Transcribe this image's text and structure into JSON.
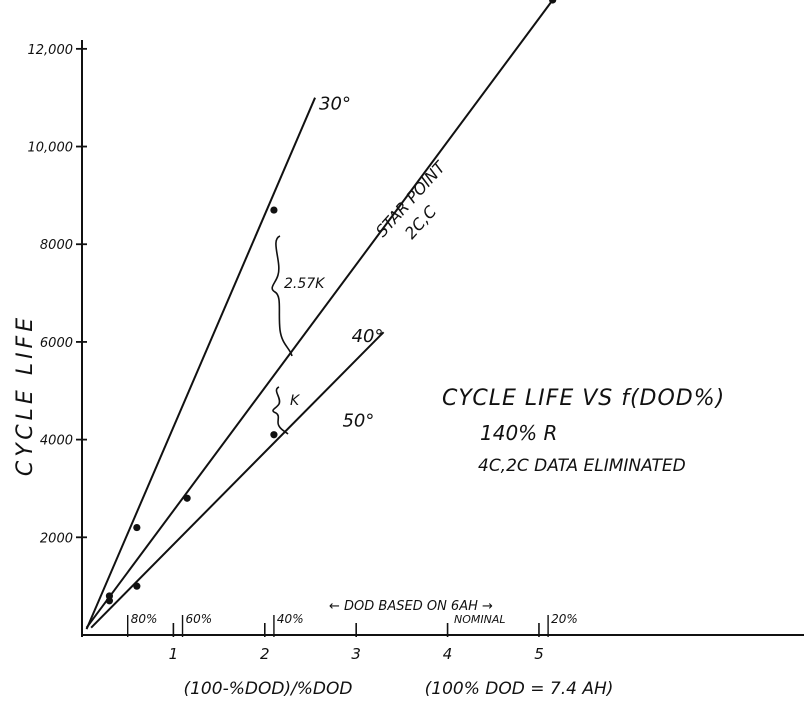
{
  "chart_data": {
    "type": "line",
    "title": "CYCLE LIFE VS f(DOD%)",
    "subtitle_lines": [
      "140% R",
      "4C,2C DATA ELIMINATED"
    ],
    "xlabel": "(100-%DOD)/%DOD",
    "xlabel_note": "(100% DOD = 7.4 AH)",
    "ylabel": "CYCLE LIFE",
    "xlim": [
      0,
      7.9
    ],
    "ylim": [
      0,
      13000
    ],
    "x_ticks": [
      {
        "value": 1,
        "label": "1"
      },
      {
        "value": 2,
        "label": "2"
      },
      {
        "value": 3,
        "label": "3"
      },
      {
        "value": 4,
        "label": "4"
      },
      {
        "value": 5,
        "label": "5"
      }
    ],
    "y_ticks": [
      {
        "value": 2000,
        "label": "2000"
      },
      {
        "value": 4000,
        "label": "4000"
      },
      {
        "value": 6000,
        "label": "6000"
      },
      {
        "value": 8000,
        "label": "8000"
      },
      {
        "value": 10000,
        "label": "10,000"
      },
      {
        "value": 12000,
        "label": "12,000"
      }
    ],
    "dod_markers": [
      {
        "value": 0.5,
        "label": "80%"
      },
      {
        "value": 1.1,
        "label": "60%"
      },
      {
        "value": 2.1,
        "label": "40%"
      },
      {
        "value": 5.1,
        "label": "20%"
      }
    ],
    "dod_note_top": "← DOD BASED ON 6AH →",
    "dod_note_bottom": "NOMINAL",
    "series": [
      {
        "name": "30°",
        "line": [
          [
            0.05,
            120
          ],
          [
            2.55,
            11000
          ]
        ],
        "points": [
          [
            0.6,
            2200
          ],
          [
            2.1,
            8700
          ]
        ]
      },
      {
        "name": "40°",
        "line": [
          [
            0.05,
            150
          ],
          [
            5.15,
            13000
          ]
        ],
        "points": [
          [
            0.3,
            800
          ],
          [
            1.15,
            2800
          ],
          [
            5.15,
            13000
          ]
        ]
      },
      {
        "name": "50°",
        "line": [
          [
            0.1,
            150
          ],
          [
            3.3,
            6200
          ]
        ],
        "points": [
          [
            0.3,
            700
          ],
          [
            0.6,
            1000
          ],
          [
            2.1,
            4100
          ]
        ]
      }
    ],
    "star_point_label": "STAR POINT",
    "star_point_sub": "2C,C",
    "annotations": [
      {
        "text": "2.57K",
        "between": [
          "30°",
          "40°"
        ],
        "at_x": 2.1
      },
      {
        "text": "K",
        "between": [
          "40°",
          "50°"
        ],
        "at_x": 2.1
      }
    ],
    "grid": false,
    "legend": "none"
  }
}
